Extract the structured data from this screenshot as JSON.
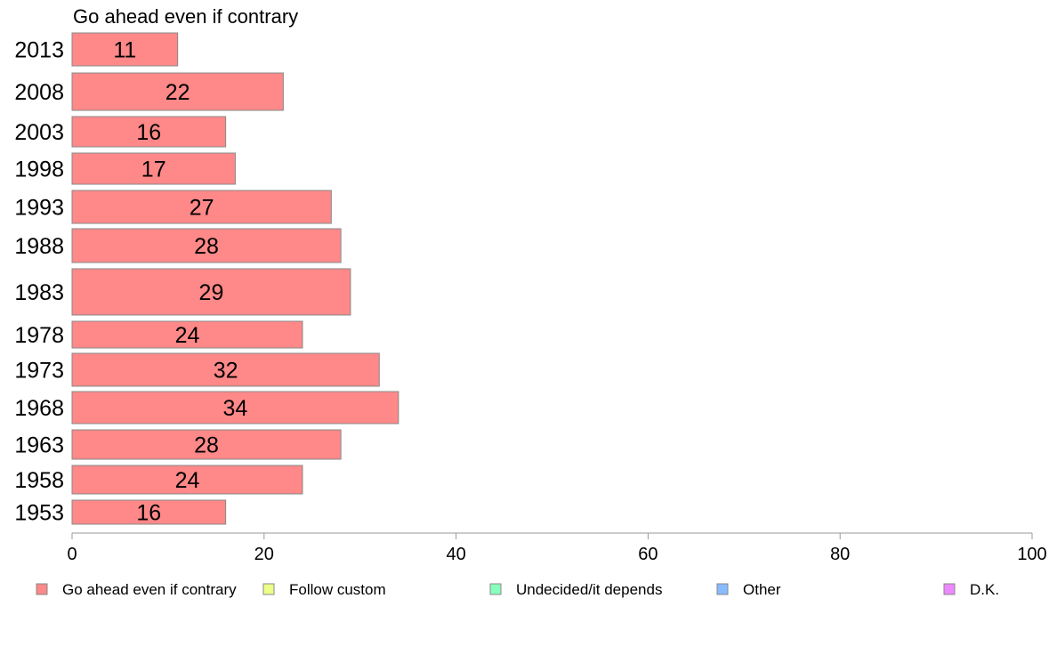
{
  "chart_data": {
    "type": "bar",
    "orientation": "horizontal",
    "title": "Go ahead even if contrary",
    "xlabel": "",
    "ylabel": "",
    "xlim": [
      0,
      100
    ],
    "x_ticks": [
      0,
      20,
      40,
      60,
      80,
      100
    ],
    "grid": false,
    "categories": [
      "2013",
      "2008",
      "2003",
      "1998",
      "1993",
      "1988",
      "1983",
      "1978",
      "1973",
      "1968",
      "1963",
      "1958",
      "1953"
    ],
    "series": [
      {
        "name": "Go ahead even if contrary",
        "values": [
          11,
          22,
          16,
          17,
          27,
          28,
          29,
          24,
          32,
          34,
          28,
          24,
          16
        ],
        "color": "#ff8888"
      }
    ],
    "legend_position": "bottom",
    "legend": [
      {
        "label": "Go ahead even if contrary",
        "color": "#ff8888"
      },
      {
        "label": "Follow custom",
        "color": "#eeff88"
      },
      {
        "label": "Undecided/it depends",
        "color": "#88ffbb"
      },
      {
        "label": "Other",
        "color": "#88bbff"
      },
      {
        "label": "D.K.",
        "color": "#ee88ff"
      }
    ],
    "colors": {
      "bar_stroke": "#888888",
      "axis": "#999999"
    }
  }
}
